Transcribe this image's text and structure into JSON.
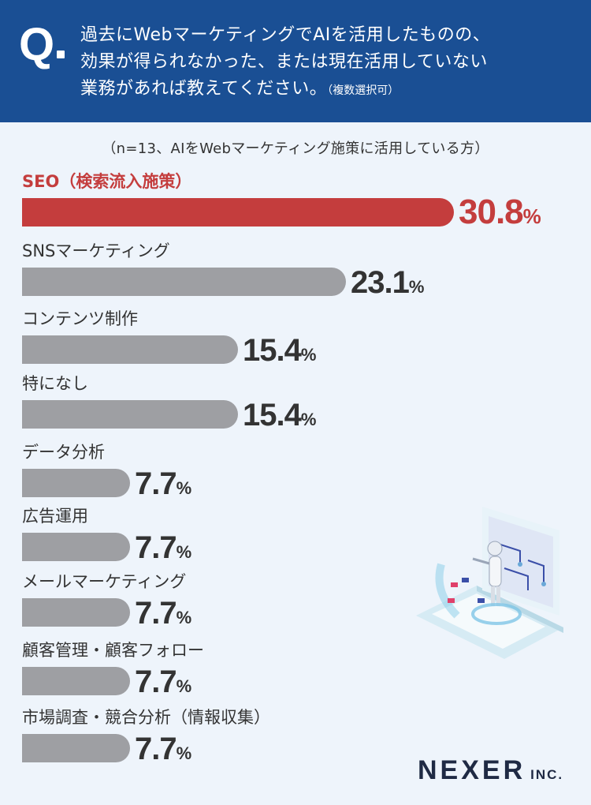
{
  "header": {
    "q_letter": "Q",
    "question_lines": [
      "過去にWebマーケティングでAIを活用したものの、",
      "効果が得られなかった、または現在活用していない",
      "業務があれば教えてください。"
    ],
    "question_note": "（複数選択可）"
  },
  "subtitle": "（n=13、AIをWebマーケティング施策に活用している方）",
  "brand": {
    "name": "NEXER",
    "suffix": "INC."
  },
  "colors": {
    "header_bg": "#1a4f94",
    "highlight": "#c43d3d",
    "bar": "#9e9fa3",
    "text": "#333333"
  },
  "chart_data": {
    "type": "bar",
    "orientation": "horizontal",
    "unit": "%",
    "categories": [
      "SEO（検索流入施策）",
      "SNSマーケティング",
      "コンテンツ制作",
      "特になし",
      "データ分析",
      "広告運用",
      "メールマーケティング",
      "顧客管理・顧客フォロー",
      "市場調査・競合分析（情報収集）"
    ],
    "values": [
      30.8,
      23.1,
      15.4,
      15.4,
      7.7,
      7.7,
      7.7,
      7.7,
      7.7
    ],
    "highlight_index": 0,
    "xlim": [
      0,
      30.8
    ]
  }
}
